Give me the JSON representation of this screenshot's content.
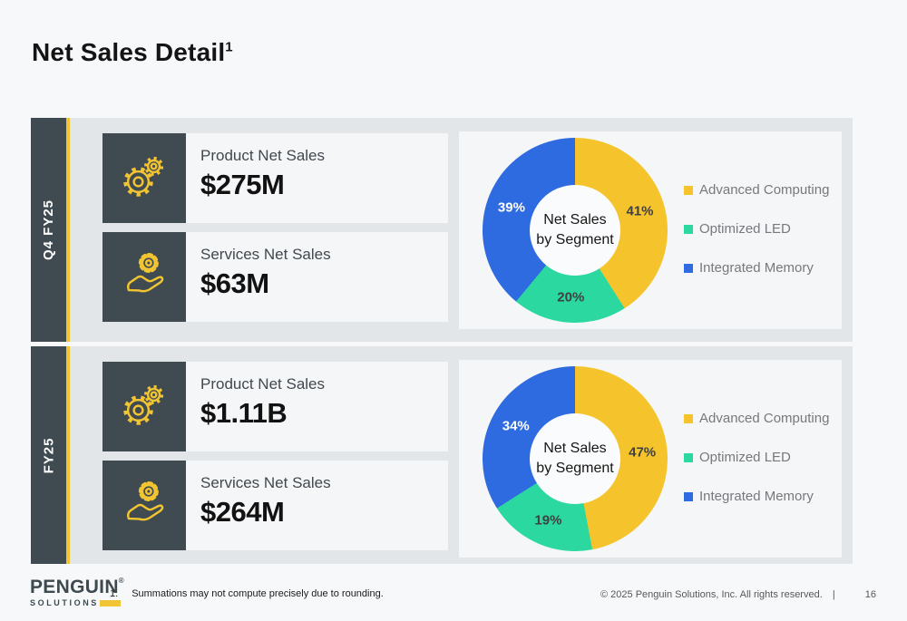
{
  "slide": {
    "title": "Net Sales Detail",
    "title_superscript": "1",
    "footnote_number": "1.",
    "footnote": "Summations may not compute precisely due to rounding.",
    "copyright": "© 2025 Penguin Solutions, Inc. All rights reserved.",
    "separator": "|",
    "page_number": "16",
    "logo": {
      "primary": "PENGUIN",
      "mark": "®",
      "secondary": "SOLUTIONS"
    }
  },
  "colors": {
    "brand_slate": "#3f4b51",
    "brand_yellow": "#f1c434",
    "section_bg": "#e3e6e9",
    "card_bg": "#f5f6f8",
    "chart_panel_bg": "#f4f6f7",
    "legend_text": "#76797d"
  },
  "sections": [
    {
      "id": "q4fy25",
      "label": "Q4 FY25",
      "cards": [
        {
          "icon": "gears-icon",
          "label": "Product Net Sales",
          "value": "$275M"
        },
        {
          "icon": "hand-gear-icon",
          "label": "Services Net Sales",
          "value": "$63M"
        }
      ]
    },
    {
      "id": "fy25",
      "label": "FY25",
      "cards": [
        {
          "icon": "gears-icon",
          "label": "Product Net Sales",
          "value": "$1.11B"
        },
        {
          "icon": "hand-gear-icon",
          "label": "Services Net Sales",
          "value": "$264M"
        }
      ]
    }
  ],
  "chart_data": [
    {
      "type": "pie",
      "donut": true,
      "title": "Net Sales by Segment",
      "center_label_lines": [
        "Net Sales",
        "by Segment"
      ],
      "labels": [
        "Advanced Computing",
        "Optimized LED",
        "Integrated Memory"
      ],
      "values": [
        41,
        20,
        39
      ],
      "unit": "%",
      "colors": [
        "#f5c42c",
        "#2bd9a0",
        "#2e6be0"
      ],
      "label_colors": [
        "#404040",
        "#404040",
        "#ffffff"
      ],
      "legend_position": "right",
      "start_angle_deg": 0,
      "direction": "clockwise"
    },
    {
      "type": "pie",
      "donut": true,
      "title": "Net Sales by Segment",
      "center_label_lines": [
        "Net Sales",
        "by Segment"
      ],
      "labels": [
        "Advanced Computing",
        "Optimized LED",
        "Integrated Memory"
      ],
      "values": [
        47,
        19,
        34
      ],
      "unit": "%",
      "colors": [
        "#f5c42c",
        "#2bd9a0",
        "#2e6be0"
      ],
      "label_colors": [
        "#404040",
        "#404040",
        "#ffffff"
      ],
      "legend_position": "right",
      "start_angle_deg": 0,
      "direction": "clockwise"
    }
  ]
}
